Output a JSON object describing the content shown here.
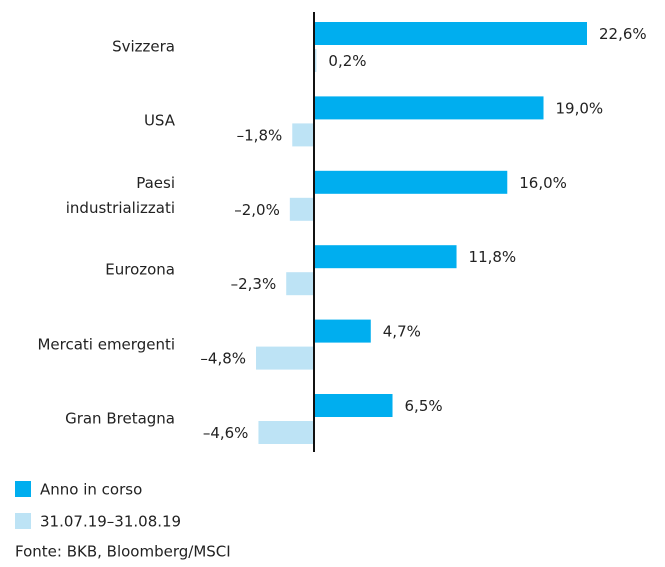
{
  "chart_data": {
    "type": "bar",
    "orientation": "horizontal",
    "categories": [
      "Svizzera",
      "USA",
      "Paesi\nindustrializzati",
      "Eurozona",
      "Mercati emergenti",
      "Gran Bretagna"
    ],
    "series": [
      {
        "name": "Anno in corso",
        "color": "#00aeef",
        "values": [
          22.6,
          19.0,
          16.0,
          11.8,
          4.7,
          6.5
        ],
        "value_labels": [
          "22,6%",
          "19,0%",
          "16,0%",
          "11,8%",
          "4,7%",
          "6,5%"
        ]
      },
      {
        "name": "31.07.19–31.08.19",
        "color": "#bde3f5",
        "values": [
          0.2,
          -1.8,
          -2.0,
          -2.3,
          -4.8,
          -4.6
        ],
        "value_labels": [
          "0,2%",
          "–1,8%",
          "–2,0%",
          "–2,3%",
          "–4,8%",
          "–4,6%"
        ]
      }
    ],
    "source": "Fonte: BKB, Bloomberg/MSCI"
  }
}
